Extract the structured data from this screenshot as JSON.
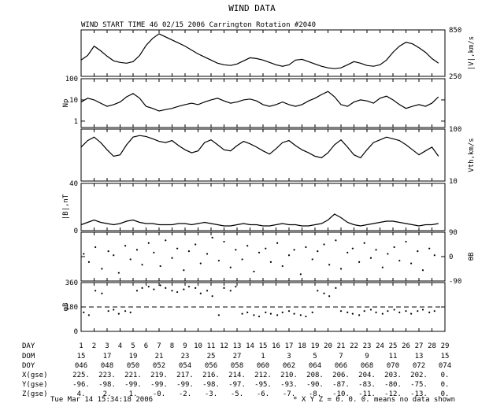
{
  "title": "WIND DATA",
  "subtitle": "WIND START TIME  46 02/15 2006 Carrington Rotation #2040",
  "footer": {
    "timestamp": "Tue Mar 14 15:34:18 2006",
    "note": "* X Y Z = 0. 0. 0. means no data shown"
  },
  "table": {
    "row_labels": [
      "DAY",
      "DOM",
      "DOY",
      "X(gse)",
      "Y(gse)",
      "Z(gse)"
    ],
    "day": [
      "1",
      "2",
      "3",
      "4",
      "5",
      "6",
      "7",
      "8",
      "9",
      "10",
      "11",
      "12",
      "13",
      "14",
      "15",
      "16",
      "17",
      "18",
      "19",
      "20",
      "21",
      "22",
      "23",
      "24",
      "25",
      "26",
      "27",
      "28",
      "29"
    ],
    "dom": [
      "15",
      "17",
      "19",
      "21",
      "23",
      "25",
      "27",
      "1",
      "3",
      "5",
      "7",
      "9",
      "11",
      "13",
      "15"
    ],
    "doy": [
      "046",
      "048",
      "050",
      "052",
      "054",
      "056",
      "058",
      "060",
      "062",
      "064",
      "066",
      "068",
      "070",
      "072",
      "074"
    ],
    "x_gse": [
      "225.",
      "223.",
      "221.",
      "219.",
      "217.",
      "216.",
      "214.",
      "212.",
      "210.",
      "208.",
      "206.",
      "204.",
      "203.",
      "202.",
      "0."
    ],
    "y_gse": [
      "-96.",
      "-98.",
      "-99.",
      "-99.",
      "-99.",
      "-98.",
      "-97.",
      "-95.",
      "-93.",
      "-90.",
      "-87.",
      "-83.",
      "-80.",
      "-75.",
      "0."
    ],
    "z_gse": [
      "4.",
      "2.",
      "1.",
      "-0.",
      "-2.",
      "-3.",
      "-5.",
      "-6.",
      "-7.",
      "-8.",
      "-10.",
      "-11.",
      "-12.",
      "-13.",
      "0."
    ]
  },
  "chart_data": [
    {
      "type": "line",
      "panel": "V",
      "ylabel": "|V|,km/s",
      "ylim": [
        250,
        850
      ],
      "yticks": [
        "850",
        "250"
      ],
      "scale": "linear",
      "x_unit": "day",
      "xlim": [
        1,
        29
      ],
      "x": [
        1,
        1.5,
        2,
        2.5,
        3,
        3.5,
        4,
        4.5,
        5,
        5.5,
        6,
        6.5,
        7,
        7.5,
        8,
        8.5,
        9,
        9.5,
        10,
        10.5,
        11,
        11.5,
        12,
        12.5,
        13,
        13.5,
        14,
        14.5,
        15,
        15.5,
        16,
        16.5,
        17,
        17.5,
        18,
        18.5,
        19,
        19.5,
        20,
        20.5,
        21,
        21.5,
        22,
        22.5,
        23,
        23.5,
        24,
        24.5,
        25,
        25.5,
        26,
        26.5,
        27,
        27.5,
        28,
        28.5
      ],
      "y": [
        460,
        520,
        640,
        580,
        510,
        450,
        430,
        420,
        440,
        520,
        650,
        740,
        800,
        760,
        720,
        680,
        640,
        590,
        540,
        500,
        460,
        420,
        400,
        390,
        410,
        450,
        490,
        480,
        460,
        430,
        400,
        380,
        400,
        460,
        470,
        440,
        410,
        380,
        360,
        350,
        360,
        400,
        440,
        420,
        390,
        380,
        400,
        460,
        560,
        640,
        690,
        670,
        620,
        560,
        480,
        420
      ]
    },
    {
      "type": "line",
      "panel": "Np",
      "ylabel": "Np",
      "ylim": [
        0.5,
        100
      ],
      "yticks": [
        "100",
        "10",
        "1"
      ],
      "scale": "log",
      "x_unit": "day",
      "xlim": [
        1,
        29
      ],
      "x": [
        1,
        1.5,
        2,
        2.5,
        3,
        3.5,
        4,
        4.5,
        5,
        5.5,
        6,
        6.5,
        7,
        7.5,
        8,
        8.5,
        9,
        9.5,
        10,
        10.5,
        11,
        11.5,
        12,
        12.5,
        13,
        13.5,
        14,
        14.5,
        15,
        15.5,
        16,
        16.5,
        17,
        17.5,
        18,
        18.5,
        19,
        19.5,
        20,
        20.5,
        21,
        21.5,
        22,
        22.5,
        23,
        23.5,
        24,
        24.5,
        25,
        25.5,
        26,
        26.5,
        27,
        27.5,
        28,
        28.5
      ],
      "y": [
        8,
        12,
        10,
        7,
        5,
        6,
        8,
        14,
        20,
        12,
        5,
        4,
        3,
        3.5,
        4,
        5,
        6,
        7,
        6,
        8,
        10,
        12,
        9,
        7,
        8,
        10,
        11,
        9,
        6,
        5,
        6,
        8,
        6,
        5,
        6,
        9,
        12,
        18,
        25,
        14,
        6,
        5,
        8,
        10,
        9,
        7,
        12,
        15,
        10,
        6,
        4,
        5,
        6,
        5,
        7,
        14
      ]
    },
    {
      "type": "line",
      "panel": "Vth",
      "ylabel": "Vth,km/s",
      "ylim": [
        10,
        100
      ],
      "yticks": [
        "100",
        "10"
      ],
      "scale": "log",
      "x_unit": "day",
      "xlim": [
        1,
        29
      ],
      "x": [
        1,
        1.5,
        2,
        2.5,
        3,
        3.5,
        4,
        4.5,
        5,
        5.5,
        6,
        6.5,
        7,
        7.5,
        8,
        8.5,
        9,
        9.5,
        10,
        10.5,
        11,
        11.5,
        12,
        12.5,
        13,
        13.5,
        14,
        14.5,
        15,
        15.5,
        16,
        16.5,
        17,
        17.5,
        18,
        18.5,
        19,
        19.5,
        20,
        20.5,
        21,
        21.5,
        22,
        22.5,
        23,
        23.5,
        24,
        24.5,
        25,
        25.5,
        26,
        26.5,
        27,
        27.5,
        28,
        28.5
      ],
      "y": [
        45,
        60,
        70,
        55,
        40,
        30,
        32,
        50,
        70,
        75,
        72,
        65,
        58,
        55,
        60,
        48,
        40,
        35,
        38,
        55,
        62,
        50,
        40,
        38,
        48,
        58,
        52,
        45,
        38,
        33,
        42,
        55,
        60,
        48,
        40,
        35,
        30,
        28,
        35,
        50,
        62,
        45,
        32,
        28,
        40,
        55,
        62,
        70,
        65,
        60,
        50,
        40,
        32,
        38,
        45,
        30
      ]
    },
    {
      "type": "line",
      "panel": "B",
      "ylabel": "|B|,nT",
      "ylim": [
        0,
        40
      ],
      "yticks": [
        "40",
        "0"
      ],
      "scale": "linear",
      "x_unit": "day",
      "xlim": [
        1,
        29
      ],
      "x": [
        1,
        1.5,
        2,
        2.5,
        3,
        3.5,
        4,
        4.5,
        5,
        5.5,
        6,
        6.5,
        7,
        7.5,
        8,
        8.5,
        9,
        9.5,
        10,
        10.5,
        11,
        11.5,
        12,
        12.5,
        13,
        13.5,
        14,
        14.5,
        15,
        15.5,
        16,
        16.5,
        17,
        17.5,
        18,
        18.5,
        19,
        19.5,
        20,
        20.5,
        21,
        21.5,
        22,
        22.5,
        23,
        23.5,
        24,
        24.5,
        25,
        25.5,
        26,
        26.5,
        27,
        27.5,
        28,
        28.5
      ],
      "y": [
        5,
        7,
        9,
        7,
        6,
        5,
        6,
        8,
        9,
        7,
        6,
        6,
        5,
        5,
        5,
        6,
        6,
        5,
        6,
        7,
        6,
        5,
        4,
        4,
        5,
        6,
        5,
        5,
        4,
        4,
        5,
        6,
        5,
        5,
        4,
        4,
        5,
        6,
        9,
        14,
        11,
        7,
        5,
        4,
        5,
        6,
        7,
        8,
        8,
        7,
        6,
        5,
        4,
        5,
        5,
        6
      ]
    },
    {
      "type": "scatter",
      "panel": "thetaB",
      "ylabel": "θB",
      "ylim": [
        -90,
        90
      ],
      "yticks": [
        "90",
        "0",
        "-90"
      ],
      "scale": "linear",
      "x_unit": "day",
      "xlim": [
        1,
        29
      ],
      "x": [
        1.2,
        1.6,
        2.1,
        2.6,
        3.1,
        3.5,
        3.9,
        4.4,
        4.8,
        5.3,
        5.7,
        6.2,
        6.6,
        7.1,
        7.5,
        8.0,
        8.4,
        8.9,
        9.3,
        9.8,
        10.2,
        10.7,
        11.1,
        11.6,
        12.0,
        12.5,
        12.9,
        13.4,
        13.8,
        14.3,
        14.7,
        15.2,
        15.6,
        16.1,
        16.5,
        17.0,
        17.4,
        17.9,
        18.3,
        18.8,
        19.2,
        19.7,
        20.1,
        20.6,
        21.0,
        21.5,
        21.9,
        22.4,
        22.8,
        23.3,
        23.7,
        24.2,
        24.6,
        25.1,
        25.5,
        26.0,
        26.4,
        26.9,
        27.3,
        27.8,
        28.2
      ],
      "y": [
        10,
        -20,
        35,
        -45,
        20,
        5,
        -60,
        40,
        -10,
        25,
        -30,
        50,
        15,
        -35,
        60,
        -5,
        30,
        -50,
        20,
        45,
        -25,
        10,
        70,
        -15,
        55,
        -40,
        25,
        -10,
        40,
        -55,
        15,
        30,
        -20,
        50,
        -35,
        5,
        25,
        -65,
        35,
        -10,
        20,
        45,
        -30,
        60,
        -45,
        15,
        30,
        -20,
        50,
        -5,
        25,
        -40,
        10,
        35,
        -15,
        55,
        -25,
        20,
        -50,
        30,
        5
      ]
    },
    {
      "type": "scatter",
      "panel": "phiB",
      "ylabel": "φB",
      "ylim": [
        0,
        360
      ],
      "yticks": [
        "360",
        "180",
        "0"
      ],
      "scale": "linear",
      "x_unit": "day",
      "xlim": [
        1,
        29
      ],
      "x": [
        1.2,
        1.6,
        2.1,
        2.6,
        3.1,
        3.5,
        3.9,
        4.4,
        4.8,
        5.3,
        5.7,
        6.2,
        6.6,
        7.1,
        7.5,
        8.0,
        8.4,
        8.9,
        9.3,
        9.8,
        10.2,
        10.7,
        11.1,
        11.6,
        12.0,
        12.5,
        12.9,
        13.4,
        13.8,
        14.3,
        14.7,
        15.2,
        15.6,
        16.1,
        16.5,
        17.0,
        17.4,
        17.9,
        18.3,
        18.8,
        19.2,
        19.7,
        20.1,
        20.6,
        21.0,
        21.5,
        21.9,
        22.4,
        22.8,
        23.3,
        23.7,
        24.2,
        24.6,
        25.1,
        25.5,
        26.0,
        26.4,
        26.9,
        27.3,
        27.8,
        28.2
      ],
      "y": [
        140,
        120,
        300,
        280,
        150,
        160,
        130,
        150,
        140,
        300,
        320,
        330,
        310,
        340,
        320,
        300,
        290,
        310,
        330,
        320,
        280,
        300,
        260,
        120,
        320,
        300,
        330,
        130,
        140,
        120,
        110,
        140,
        130,
        120,
        140,
        150,
        130,
        120,
        110,
        140,
        300,
        280,
        260,
        320,
        150,
        140,
        130,
        120,
        150,
        160,
        140,
        130,
        150,
        160,
        140,
        150,
        130,
        150,
        160,
        140,
        150
      ]
    }
  ]
}
